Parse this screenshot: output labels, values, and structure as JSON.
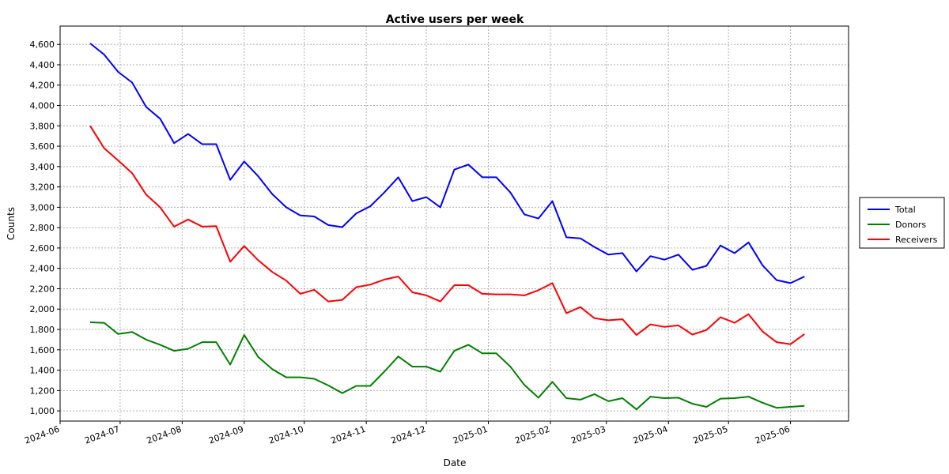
{
  "chart_data": {
    "type": "line",
    "title": "Active users per week",
    "xlabel": "Date",
    "ylabel": "Counts",
    "grid": true,
    "legend_placement": "right",
    "xlim": [
      "2024-06-01",
      "2025-06-30"
    ],
    "ylim": [
      900,
      4780
    ],
    "x_ticks": [
      "2024-06",
      "2024-07",
      "2024-08",
      "2024-09",
      "2024-10",
      "2024-11",
      "2024-12",
      "2025-01",
      "2025-02",
      "2025-03",
      "2025-04",
      "2025-05",
      "2025-06"
    ],
    "y_ticks": [
      1000,
      1200,
      1400,
      1600,
      1800,
      2000,
      2200,
      2400,
      2600,
      2800,
      3000,
      3200,
      3400,
      3600,
      3800,
      4000,
      4200,
      4400,
      4600
    ],
    "y_tick_labels": [
      "1,000",
      "1,200",
      "1,400",
      "1,600",
      "1,800",
      "2,000",
      "2,200",
      "2,400",
      "2,600",
      "2,800",
      "3,000",
      "3,200",
      "3,400",
      "3,600",
      "3,800",
      "4,000",
      "4,200",
      "4,400",
      "4,600"
    ],
    "x": [
      "2024-06-16",
      "2024-06-23",
      "2024-06-30",
      "2024-07-07",
      "2024-07-14",
      "2024-07-21",
      "2024-07-28",
      "2024-08-04",
      "2024-08-11",
      "2024-08-18",
      "2024-08-25",
      "2024-09-01",
      "2024-09-08",
      "2024-09-15",
      "2024-09-22",
      "2024-09-29",
      "2024-10-06",
      "2024-10-13",
      "2024-10-20",
      "2024-10-27",
      "2024-11-03",
      "2024-11-10",
      "2024-11-17",
      "2024-11-24",
      "2024-12-01",
      "2024-12-08",
      "2024-12-15",
      "2024-12-22",
      "2024-12-29",
      "2025-01-05",
      "2025-01-12",
      "2025-01-19",
      "2025-01-26",
      "2025-02-02",
      "2025-02-09",
      "2025-02-16",
      "2025-02-23",
      "2025-03-02",
      "2025-03-09",
      "2025-03-16",
      "2025-03-23",
      "2025-03-30",
      "2025-04-06",
      "2025-04-13",
      "2025-04-20",
      "2025-04-27",
      "2025-05-04",
      "2025-05-11",
      "2025-05-18",
      "2025-05-25",
      "2025-06-01",
      "2025-06-08"
    ],
    "series": [
      {
        "name": "Total",
        "color": "#0000ff",
        "values": [
          4610,
          4500,
          4330,
          4225,
          3985,
          3870,
          3630,
          3720,
          3620,
          3620,
          3270,
          3450,
          3305,
          3130,
          3000,
          2920,
          2910,
          2825,
          2805,
          2940,
          3010,
          3145,
          3295,
          3060,
          3100,
          3000,
          3370,
          3420,
          3295,
          3295,
          3145,
          2930,
          2890,
          3060,
          2705,
          2695,
          2610,
          2535,
          2550,
          2370,
          2520,
          2485,
          2535,
          2385,
          2425,
          2625,
          2550,
          2655,
          2430,
          2285,
          2255,
          2320
        ]
      },
      {
        "name": "Donors",
        "color": "#008000",
        "values": [
          1870,
          1865,
          1755,
          1775,
          1700,
          1650,
          1590,
          1610,
          1675,
          1675,
          1455,
          1745,
          1530,
          1410,
          1330,
          1330,
          1315,
          1250,
          1175,
          1245,
          1245,
          1385,
          1535,
          1435,
          1435,
          1385,
          1590,
          1650,
          1565,
          1565,
          1435,
          1255,
          1130,
          1285,
          1125,
          1110,
          1165,
          1095,
          1125,
          1015,
          1140,
          1125,
          1130,
          1070,
          1040,
          1120,
          1125,
          1140,
          1080,
          1030,
          1040,
          1050
        ]
      },
      {
        "name": "Receivers",
        "color": "#ff0000",
        "values": [
          3800,
          3580,
          3460,
          3335,
          3125,
          3000,
          2810,
          2880,
          2810,
          2815,
          2465,
          2620,
          2480,
          2365,
          2280,
          2150,
          2190,
          2075,
          2090,
          2215,
          2240,
          2290,
          2320,
          2165,
          2135,
          2075,
          2235,
          2235,
          2150,
          2145,
          2145,
          2135,
          2185,
          2255,
          1960,
          2020,
          1910,
          1890,
          1900,
          1745,
          1850,
          1825,
          1840,
          1750,
          1795,
          1920,
          1865,
          1950,
          1780,
          1675,
          1655,
          1755
        ]
      }
    ]
  }
}
